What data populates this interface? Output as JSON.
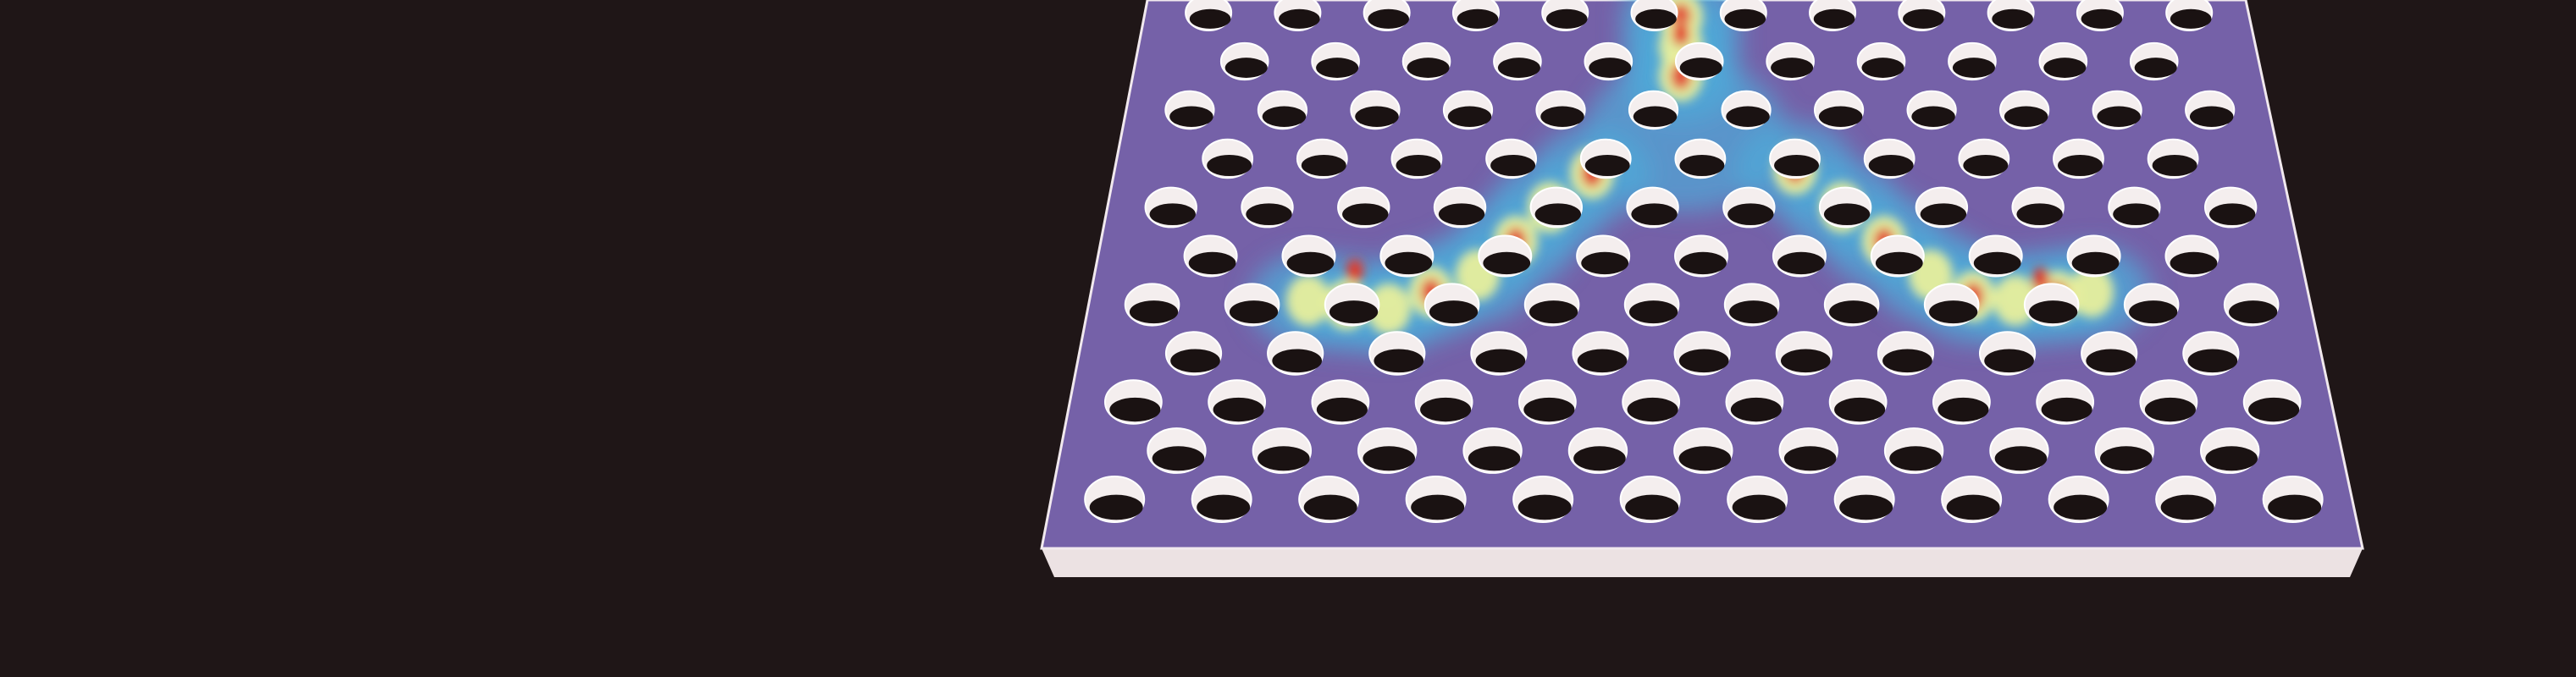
{
  "image": {
    "subject": "photonic-crystal-slab",
    "colors": {
      "background": "#1f1617",
      "slab_top": "#7561a8",
      "slab_edge": "#ece2e3",
      "hole_rim": "#f4eeee",
      "hole_shadow": "#1a1212",
      "field_low": "#4fa9d8",
      "field_mid": "#e8ef9c",
      "field_high": "#e23a2c"
    }
  }
}
